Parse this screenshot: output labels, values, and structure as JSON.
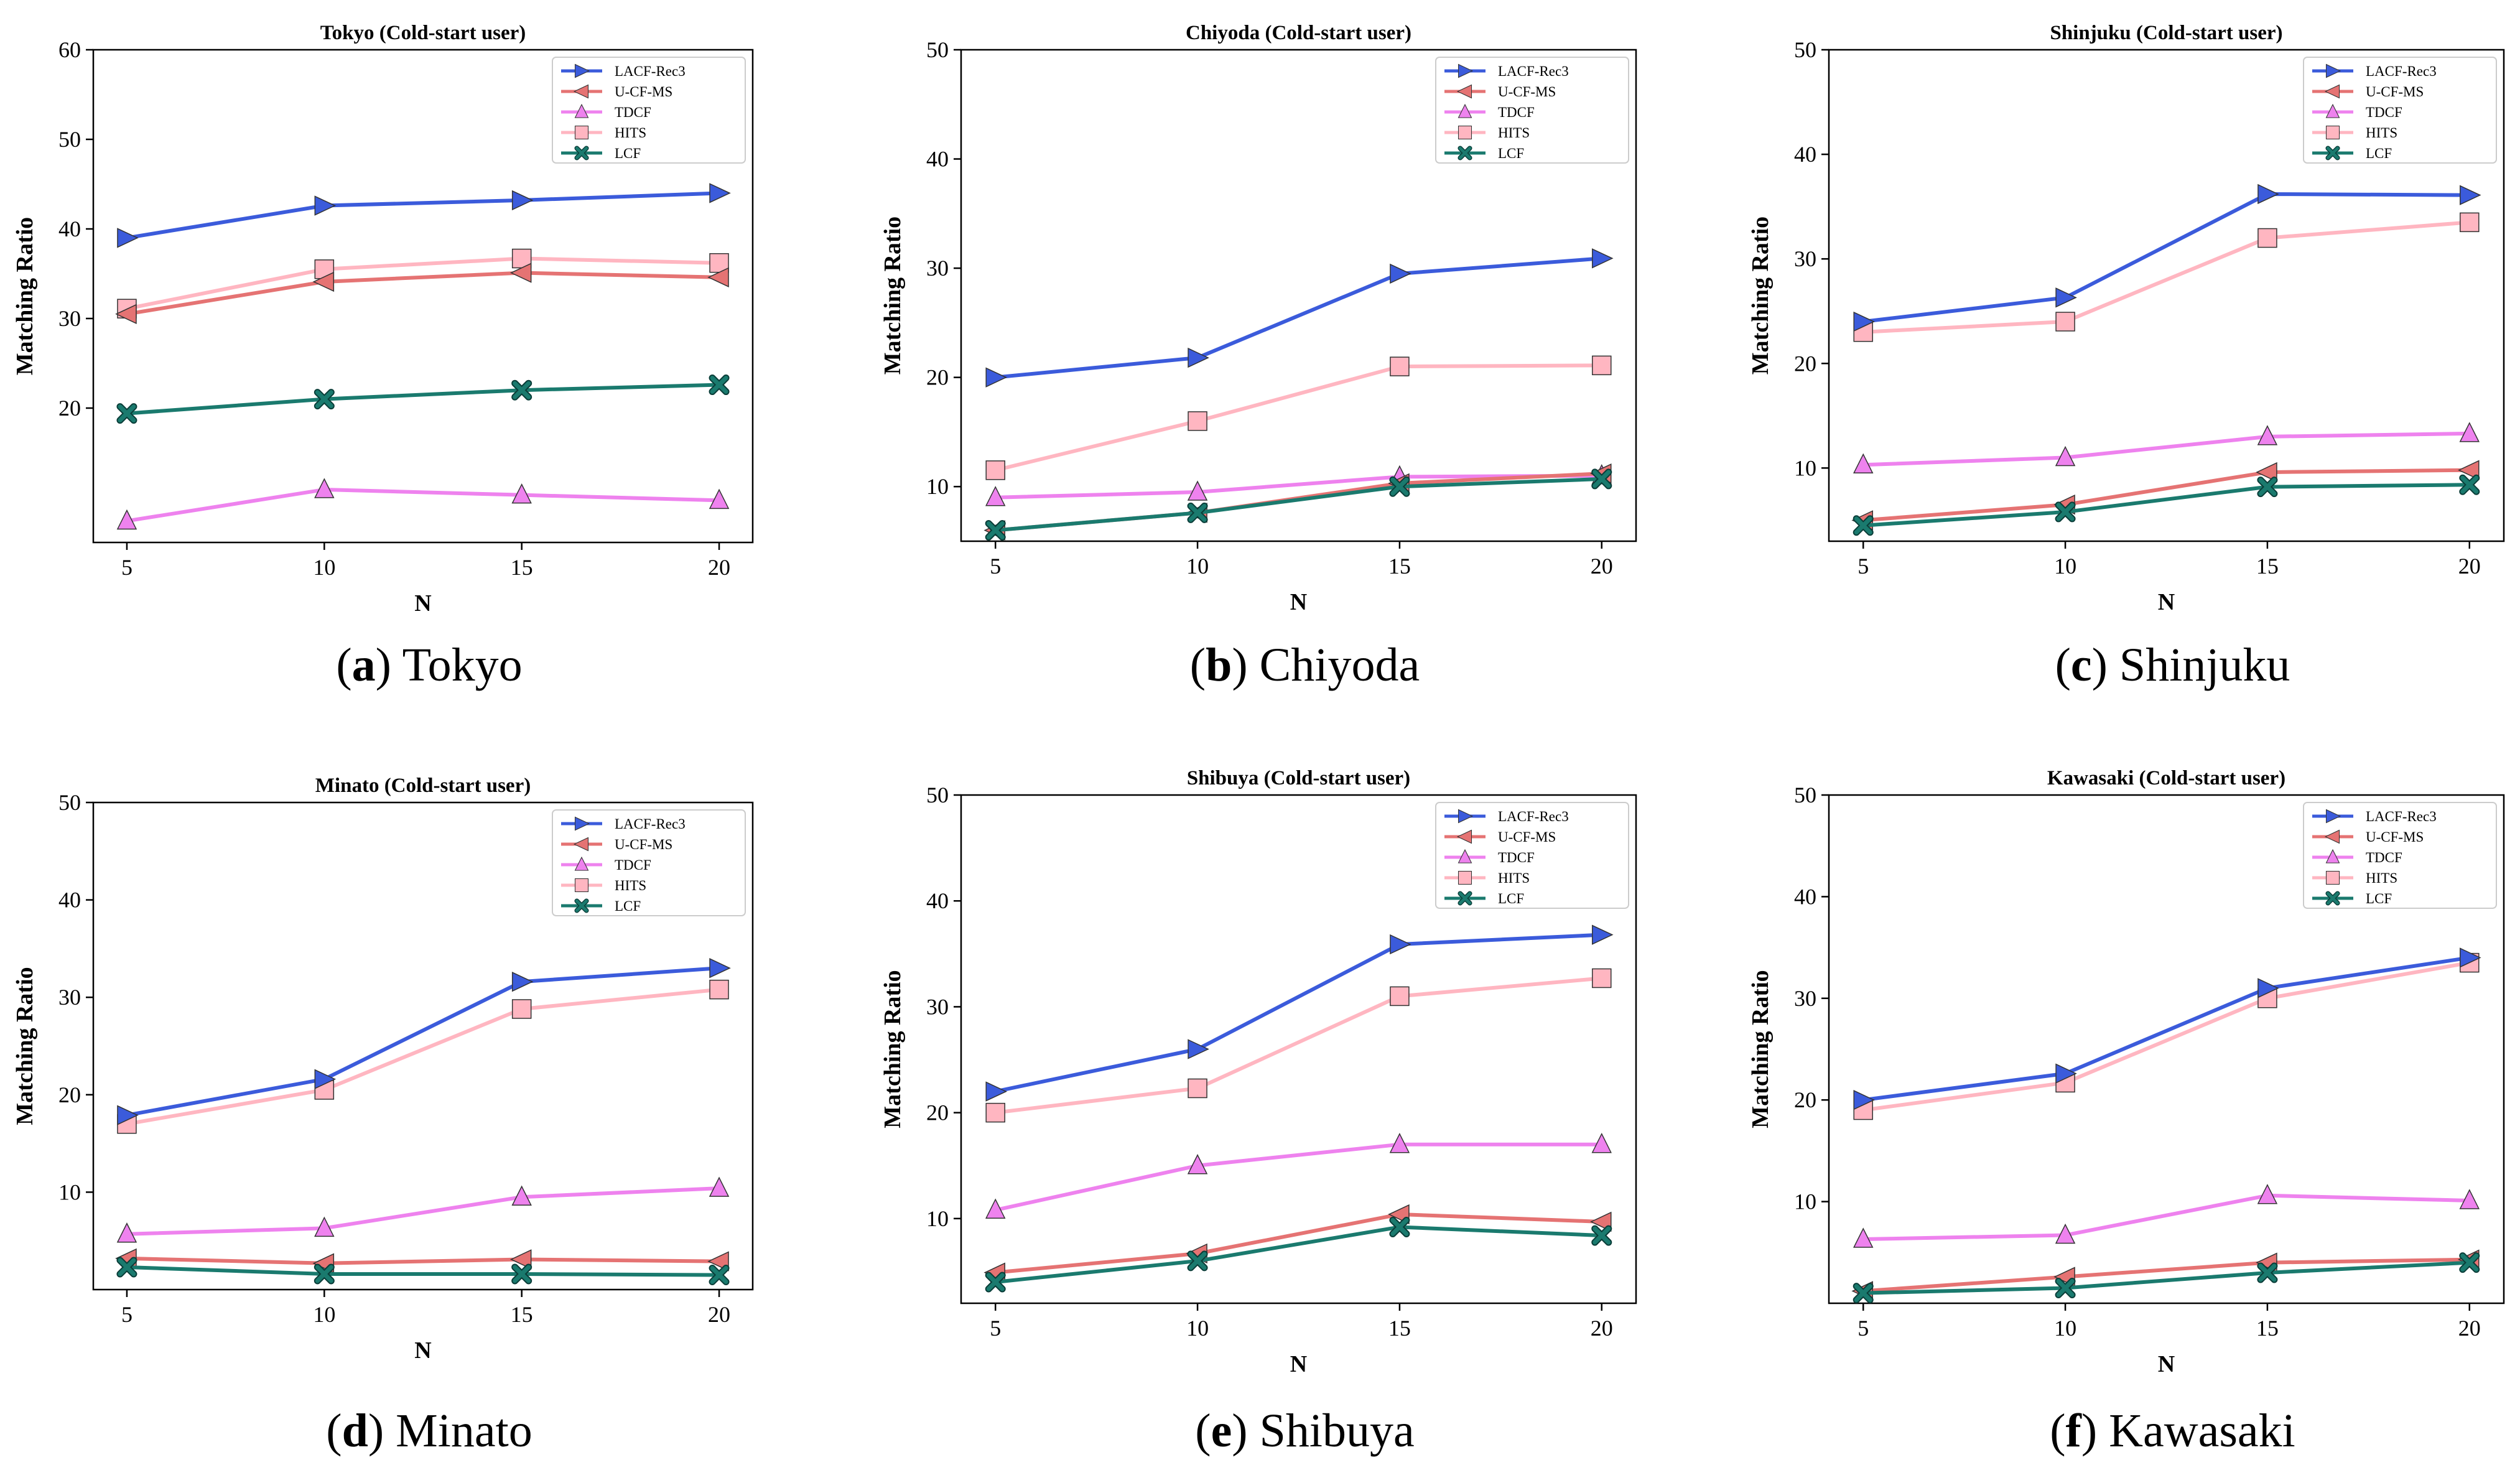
{
  "legend_labels": [
    "LACF-Rec3",
    "U-CF-MS",
    "TDCF",
    "HITS",
    "LCF"
  ],
  "series_colors": {
    "LACF-Rec3": "#3b5bdb",
    "U-CF-MS": "#e57373",
    "TDCF": "#ee82ee",
    "HITS": "#ffb6c1",
    "LCF": "#1a7a6e"
  },
  "chart_data": [
    {
      "type": "line",
      "title": "Tokyo (Cold-start user)",
      "xlabel": "N",
      "ylabel": "Matching Ratio",
      "x": [
        5,
        10,
        15,
        20
      ],
      "ylim": [
        5,
        60
      ],
      "yticks": [
        20,
        30,
        40,
        50,
        60
      ],
      "caption": {
        "letter": "a",
        "text": " Tokyo"
      },
      "series": [
        {
          "name": "LACF-Rec3",
          "values": [
            39.0,
            42.6,
            43.2,
            44.0
          ]
        },
        {
          "name": "U-CF-MS",
          "values": [
            30.5,
            34.1,
            35.1,
            34.6
          ]
        },
        {
          "name": "TDCF",
          "values": [
            7.4,
            10.9,
            10.3,
            9.7
          ]
        },
        {
          "name": "HITS",
          "values": [
            31.1,
            35.5,
            36.7,
            36.2
          ]
        },
        {
          "name": "LCF",
          "values": [
            19.4,
            21.0,
            22.0,
            22.6
          ]
        }
      ]
    },
    {
      "type": "line",
      "title": "Chiyoda (Cold-start user)",
      "xlabel": "N",
      "ylabel": "Matching Ratio",
      "x": [
        5,
        10,
        15,
        20
      ],
      "ylim": [
        5,
        50
      ],
      "yticks": [
        10,
        20,
        30,
        40,
        50
      ],
      "caption": {
        "letter": "b",
        "text": " Chiyoda"
      },
      "series": [
        {
          "name": "LACF-Rec3",
          "values": [
            20.0,
            21.8,
            29.5,
            30.9
          ]
        },
        {
          "name": "U-CF-MS",
          "values": [
            6.0,
            7.6,
            10.3,
            11.2
          ]
        },
        {
          "name": "TDCF",
          "values": [
            9.0,
            9.5,
            10.9,
            11.0
          ]
        },
        {
          "name": "HITS",
          "values": [
            11.5,
            16.0,
            21.0,
            21.1
          ]
        },
        {
          "name": "LCF",
          "values": [
            6.0,
            7.6,
            10.0,
            10.7
          ]
        }
      ]
    },
    {
      "type": "line",
      "title": "Shinjuku (Cold-start user)",
      "xlabel": "N",
      "ylabel": "Matching Ratio",
      "x": [
        5,
        10,
        15,
        20
      ],
      "ylim": [
        3,
        50
      ],
      "yticks": [
        10,
        20,
        30,
        40,
        50
      ],
      "caption": {
        "letter": "c",
        "text": " Shinjuku"
      },
      "series": [
        {
          "name": "LACF-Rec3",
          "values": [
            24.0,
            26.3,
            36.2,
            36.1
          ]
        },
        {
          "name": "U-CF-MS",
          "values": [
            5.0,
            6.5,
            9.6,
            9.8
          ]
        },
        {
          "name": "TDCF",
          "values": [
            10.3,
            11.0,
            13.0,
            13.3
          ]
        },
        {
          "name": "HITS",
          "values": [
            23.0,
            24.0,
            32.0,
            33.5
          ]
        },
        {
          "name": "LCF",
          "values": [
            4.5,
            5.8,
            8.2,
            8.4
          ]
        }
      ]
    },
    {
      "type": "line",
      "title": "Minato (Cold-start user)",
      "xlabel": "N",
      "ylabel": "Matching Ratio",
      "x": [
        5,
        10,
        15,
        20
      ],
      "ylim": [
        0,
        50
      ],
      "yticks": [
        10,
        20,
        30,
        40,
        50
      ],
      "caption": {
        "letter": "d",
        "text": " Minato"
      },
      "series": [
        {
          "name": "LACF-Rec3",
          "values": [
            17.9,
            21.6,
            31.6,
            33.0
          ]
        },
        {
          "name": "U-CF-MS",
          "values": [
            3.2,
            2.7,
            3.1,
            2.9
          ]
        },
        {
          "name": "TDCF",
          "values": [
            5.7,
            6.3,
            9.5,
            10.4
          ]
        },
        {
          "name": "HITS",
          "values": [
            17.0,
            20.5,
            28.8,
            30.8
          ]
        },
        {
          "name": "LCF",
          "values": [
            2.3,
            1.6,
            1.6,
            1.5
          ]
        }
      ]
    },
    {
      "type": "line",
      "title": "Shibuya (Cold-start user)",
      "xlabel": "N",
      "ylabel": "Matching Ratio",
      "x": [
        5,
        10,
        15,
        20
      ],
      "ylim": [
        2,
        50
      ],
      "yticks": [
        10,
        20,
        30,
        40,
        50
      ],
      "caption": {
        "letter": "e",
        "text": " Shibuya"
      },
      "series": [
        {
          "name": "LACF-Rec3",
          "values": [
            22.0,
            26.0,
            35.9,
            36.8
          ]
        },
        {
          "name": "U-CF-MS",
          "values": [
            4.9,
            6.7,
            10.4,
            9.7
          ]
        },
        {
          "name": "TDCF",
          "values": [
            10.8,
            15.0,
            17.0,
            17.0
          ]
        },
        {
          "name": "HITS",
          "values": [
            20.0,
            22.3,
            31.0,
            32.7
          ]
        },
        {
          "name": "LCF",
          "values": [
            4.0,
            6.0,
            9.2,
            8.4
          ]
        }
      ]
    },
    {
      "type": "line",
      "title": "Kawasaki (Cold-start user)",
      "xlabel": "N",
      "ylabel": "Matching Ratio",
      "x": [
        5,
        10,
        15,
        20
      ],
      "ylim": [
        0,
        50
      ],
      "yticks": [
        10,
        20,
        30,
        40,
        50
      ],
      "caption": {
        "letter": "f",
        "text": " Kawasaki"
      },
      "series": [
        {
          "name": "LACF-Rec3",
          "values": [
            20.0,
            22.6,
            31.0,
            34.0
          ]
        },
        {
          "name": "U-CF-MS",
          "values": [
            1.2,
            2.6,
            4.0,
            4.3
          ]
        },
        {
          "name": "TDCF",
          "values": [
            6.3,
            6.7,
            10.6,
            10.1
          ]
        },
        {
          "name": "HITS",
          "values": [
            19.0,
            21.7,
            30.0,
            33.5
          ]
        },
        {
          "name": "LCF",
          "values": [
            1.0,
            1.5,
            3.0,
            4.0
          ]
        }
      ]
    }
  ]
}
